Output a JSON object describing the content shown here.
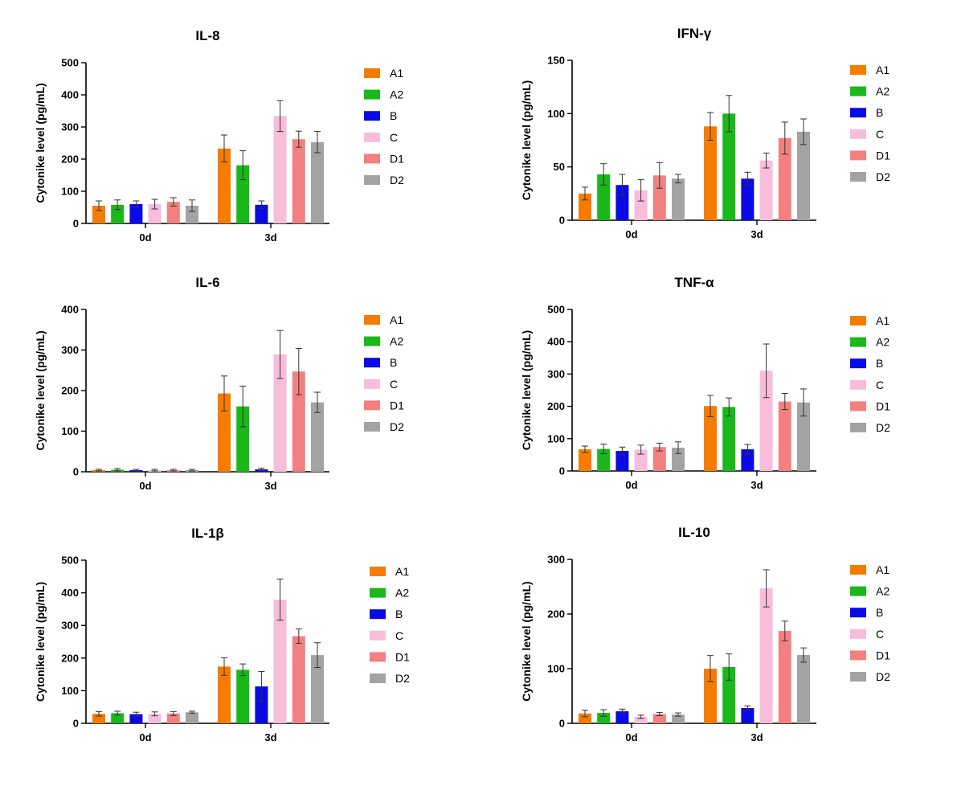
{
  "colors": {
    "A1": "#f57c00",
    "A2": "#1ab81a",
    "B": "#0a0ae6",
    "C": "#f7bddb",
    "D1": "#f28080",
    "D2": "#a3a3a3",
    "axis": "#000000",
    "error": "#333333"
  },
  "chart_data": [
    {
      "type": "bar",
      "title": "IL-8",
      "ylabel": "Cytonike level (pg/mL)",
      "xlabel": "",
      "categories": [
        "0d",
        "3d"
      ],
      "ylim": [
        0,
        500
      ],
      "yticks": [
        0,
        100,
        200,
        300,
        400,
        500
      ],
      "series": [
        {
          "name": "A1",
          "values": [
            55,
            233
          ],
          "errors": [
            15,
            42
          ]
        },
        {
          "name": "A2",
          "values": [
            58,
            181
          ],
          "errors": [
            15,
            45
          ]
        },
        {
          "name": "B",
          "values": [
            60,
            58
          ],
          "errors": [
            10,
            12
          ]
        },
        {
          "name": "C",
          "values": [
            60,
            334
          ],
          "errors": [
            15,
            48
          ]
        },
        {
          "name": "D1",
          "values": [
            67,
            262
          ],
          "errors": [
            13,
            25
          ]
        },
        {
          "name": "D2",
          "values": [
            55,
            253
          ],
          "errors": [
            18,
            33
          ]
        }
      ]
    },
    {
      "type": "bar",
      "title": "IFN-γ",
      "ylabel": "Cytonike level (pg/mL)",
      "xlabel": "",
      "categories": [
        "0d",
        "3d"
      ],
      "ylim": [
        0,
        150
      ],
      "yticks": [
        0,
        50,
        100,
        150
      ],
      "series": [
        {
          "name": "A1",
          "values": [
            25,
            88
          ],
          "errors": [
            6,
            13
          ]
        },
        {
          "name": "A2",
          "values": [
            43,
            100
          ],
          "errors": [
            10,
            17
          ]
        },
        {
          "name": "B",
          "values": [
            33,
            39
          ],
          "errors": [
            10,
            6
          ]
        },
        {
          "name": "C",
          "values": [
            28,
            56
          ],
          "errors": [
            10,
            7
          ]
        },
        {
          "name": "D1",
          "values": [
            42,
            77
          ],
          "errors": [
            12,
            15
          ]
        },
        {
          "name": "D2",
          "values": [
            39,
            83
          ],
          "errors": [
            4,
            12
          ]
        }
      ]
    },
    {
      "type": "bar",
      "title": "IL-6",
      "ylabel": "Cytonike level (pg/mL)",
      "xlabel": "",
      "categories": [
        "0d",
        "3d"
      ],
      "ylim": [
        0,
        400
      ],
      "yticks": [
        0,
        100,
        200,
        300,
        400
      ],
      "series": [
        {
          "name": "A1",
          "values": [
            4,
            193
          ],
          "errors": [
            2,
            43
          ]
        },
        {
          "name": "A2",
          "values": [
            5,
            161
          ],
          "errors": [
            3,
            50
          ]
        },
        {
          "name": "B",
          "values": [
            4,
            6
          ],
          "errors": [
            2,
            3
          ]
        },
        {
          "name": "C",
          "values": [
            4,
            289
          ],
          "errors": [
            2,
            59
          ]
        },
        {
          "name": "D1",
          "values": [
            4,
            247
          ],
          "errors": [
            2,
            57
          ]
        },
        {
          "name": "D2",
          "values": [
            4,
            171
          ],
          "errors": [
            2,
            25
          ]
        }
      ]
    },
    {
      "type": "bar",
      "title": "TNF-α",
      "ylabel": "Cytonike level (pg/mL)",
      "xlabel": "",
      "categories": [
        "0d",
        "3d"
      ],
      "ylim": [
        0,
        500
      ],
      "yticks": [
        0,
        100,
        200,
        300,
        400,
        500
      ],
      "series": [
        {
          "name": "A1",
          "values": [
            67,
            201
          ],
          "errors": [
            10,
            33
          ]
        },
        {
          "name": "A2",
          "values": [
            68,
            198
          ],
          "errors": [
            15,
            28
          ]
        },
        {
          "name": "B",
          "values": [
            62,
            67
          ],
          "errors": [
            12,
            15
          ]
        },
        {
          "name": "C",
          "values": [
            66,
            310
          ],
          "errors": [
            14,
            83
          ]
        },
        {
          "name": "D1",
          "values": [
            74,
            215
          ],
          "errors": [
            12,
            25
          ]
        },
        {
          "name": "D2",
          "values": [
            72,
            212
          ],
          "errors": [
            18,
            42
          ]
        }
      ]
    },
    {
      "type": "bar",
      "title": "IL-1β",
      "ylabel": "Cytonike level (pg/mL)",
      "xlabel": "",
      "categories": [
        "0d",
        "3d"
      ],
      "ylim": [
        0,
        500
      ],
      "yticks": [
        0,
        100,
        200,
        300,
        400,
        500
      ],
      "series": [
        {
          "name": "A1",
          "values": [
            29,
            174
          ],
          "errors": [
            7,
            27
          ]
        },
        {
          "name": "A2",
          "values": [
            31,
            164
          ],
          "errors": [
            6,
            18
          ]
        },
        {
          "name": "B",
          "values": [
            28,
            113
          ],
          "errors": [
            6,
            46
          ]
        },
        {
          "name": "C",
          "values": [
            29,
            379
          ],
          "errors": [
            6,
            63
          ]
        },
        {
          "name": "D1",
          "values": [
            30,
            267
          ],
          "errors": [
            6,
            22
          ]
        },
        {
          "name": "D2",
          "values": [
            34,
            209
          ],
          "errors": [
            3,
            38
          ]
        }
      ]
    },
    {
      "type": "bar",
      "title": "IL-10",
      "ylabel": "Cytonike level (pg/mL)",
      "xlabel": "",
      "categories": [
        "0d",
        "3d"
      ],
      "ylim": [
        0,
        300
      ],
      "yticks": [
        0,
        100,
        200,
        300
      ],
      "series": [
        {
          "name": "A1",
          "values": [
            18,
            100
          ],
          "errors": [
            6,
            24
          ]
        },
        {
          "name": "A2",
          "values": [
            19,
            103
          ],
          "errors": [
            6,
            24
          ]
        },
        {
          "name": "B",
          "values": [
            22,
            28
          ],
          "errors": [
            4,
            4
          ]
        },
        {
          "name": "C",
          "values": [
            12,
            247
          ],
          "errors": [
            3,
            34
          ]
        },
        {
          "name": "D1",
          "values": [
            17,
            169
          ],
          "errors": [
            3,
            18
          ]
        },
        {
          "name": "D2",
          "values": [
            16,
            125
          ],
          "errors": [
            3,
            13
          ]
        }
      ]
    }
  ]
}
